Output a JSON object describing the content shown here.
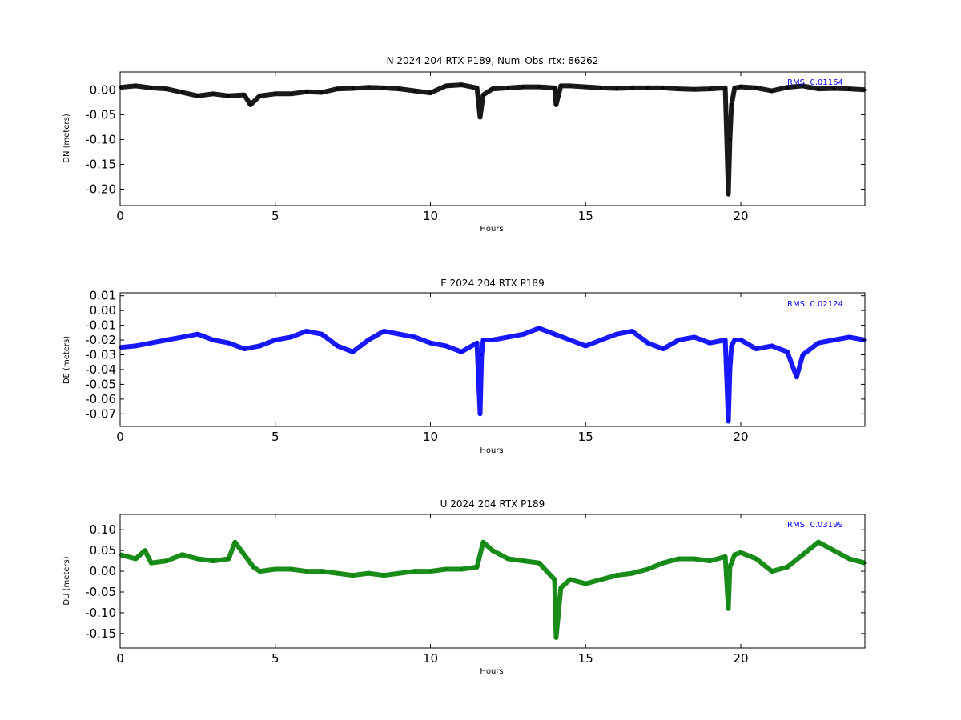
{
  "chart_data": [
    {
      "type": "scatter",
      "title": "N 2024 204 RTX  P189, Num_Obs_rtx: 86262",
      "xlabel": "Hours",
      "ylabel": "DN (meters)",
      "xlim": [
        0,
        24
      ],
      "ylim": [
        -0.233,
        0.036
      ],
      "xticks": [
        "0",
        "5",
        "10",
        "15",
        "20"
      ],
      "yticks": [
        "0.00",
        "-0.05",
        "-0.10",
        "-0.15",
        "-0.20"
      ],
      "rms_label": "RMS:  0.01164",
      "color": "#000000",
      "grid": false,
      "series": [
        {
          "x": [
            0,
            0.5,
            1,
            1.5,
            2,
            2.5,
            3,
            3.5,
            4,
            4.2,
            4.5,
            5,
            5.5,
            6,
            6.5,
            7,
            7.5,
            8,
            8.5,
            9,
            9.5,
            10,
            10.5,
            11,
            11.5,
            11.6,
            11.7,
            12,
            12.5,
            13,
            13.5,
            14,
            14.05,
            14.2,
            14.5,
            15,
            15.5,
            16,
            16.5,
            17,
            17.5,
            18,
            18.5,
            19,
            19.5,
            19.6,
            19.65,
            19.7,
            19.8,
            20,
            20.5,
            21,
            21.5,
            22,
            22.5,
            23,
            23.5,
            24
          ],
          "y": [
            0.005,
            0.008,
            0.004,
            0.002,
            -0.005,
            -0.012,
            -0.008,
            -0.012,
            -0.01,
            -0.03,
            -0.012,
            -0.008,
            -0.008,
            -0.004,
            -0.005,
            0.002,
            0.003,
            0.005,
            0.004,
            0.002,
            -0.002,
            -0.006,
            0.008,
            0.01,
            0.004,
            -0.055,
            -0.01,
            0.002,
            0.004,
            0.006,
            0.006,
            0.004,
            -0.03,
            0.008,
            0.008,
            0.006,
            0.004,
            0.003,
            0.004,
            0.004,
            0.004,
            0.002,
            0.001,
            0.002,
            0.004,
            -0.21,
            -0.1,
            -0.03,
            0.004,
            0.006,
            0.004,
            -0.002,
            0.005,
            0.008,
            0.002,
            0.003,
            0.002,
            0.0
          ]
        }
      ]
    },
    {
      "type": "scatter",
      "title": "E 2024 204 RTX  P189",
      "xlabel": "Hours",
      "ylabel": "DE (meters)",
      "xlim": [
        0,
        24
      ],
      "ylim": [
        -0.0785,
        0.012
      ],
      "xticks": [
        "0",
        "5",
        "10",
        "15",
        "20"
      ],
      "yticks": [
        "0.01",
        "0.00",
        "-0.01",
        "-0.02",
        "-0.03",
        "-0.04",
        "-0.05",
        "-0.06",
        "-0.07"
      ],
      "rms_label": "RMS:  0.02124",
      "color": "#0000ff",
      "grid": false,
      "series": [
        {
          "x": [
            0,
            0.5,
            1,
            1.5,
            2,
            2.5,
            3,
            3.5,
            4,
            4.5,
            5,
            5.5,
            6,
            6.5,
            7,
            7.5,
            8,
            8.5,
            9,
            9.5,
            10,
            10.5,
            11,
            11.5,
            11.6,
            11.65,
            11.7,
            12,
            12.5,
            13,
            13.5,
            14,
            14.5,
            15,
            15.5,
            16,
            16.5,
            17,
            17.5,
            18,
            18.5,
            19,
            19.5,
            19.6,
            19.65,
            19.7,
            19.8,
            20,
            20.5,
            21,
            21.5,
            21.8,
            22,
            22.5,
            23,
            23.5,
            24
          ],
          "y": [
            -0.025,
            -0.024,
            -0.022,
            -0.02,
            -0.018,
            -0.016,
            -0.02,
            -0.022,
            -0.026,
            -0.024,
            -0.02,
            -0.018,
            -0.014,
            -0.016,
            -0.024,
            -0.028,
            -0.02,
            -0.014,
            -0.016,
            -0.018,
            -0.022,
            -0.024,
            -0.028,
            -0.022,
            -0.07,
            -0.03,
            -0.02,
            -0.02,
            -0.018,
            -0.016,
            -0.012,
            -0.016,
            -0.02,
            -0.024,
            -0.02,
            -0.016,
            -0.014,
            -0.022,
            -0.026,
            -0.02,
            -0.018,
            -0.022,
            -0.02,
            -0.075,
            -0.04,
            -0.024,
            -0.02,
            -0.02,
            -0.026,
            -0.024,
            -0.028,
            -0.045,
            -0.03,
            -0.022,
            -0.02,
            -0.018,
            -0.02
          ]
        }
      ]
    },
    {
      "type": "scatter",
      "title": "U 2024 204 RTX  P189",
      "xlabel": "Hours",
      "ylabel": "DU (meters)",
      "xlim": [
        0,
        24
      ],
      "ylim": [
        -0.185,
        0.137
      ],
      "xticks": [
        "0",
        "5",
        "10",
        "15",
        "20"
      ],
      "yticks": [
        "0.10",
        "0.05",
        "0.00",
        "-0.05",
        "-0.10",
        "-0.15"
      ],
      "rms_label": "RMS:  0.03199",
      "color": "#008000",
      "grid": false,
      "series": [
        {
          "x": [
            0,
            0.5,
            0.8,
            1,
            1.5,
            2,
            2.5,
            3,
            3.5,
            3.7,
            4,
            4.3,
            4.5,
            5,
            5.5,
            6,
            6.5,
            7,
            7.5,
            8,
            8.5,
            9,
            9.5,
            10,
            10.5,
            11,
            11.5,
            11.7,
            12,
            12.5,
            13,
            13.5,
            14,
            14.05,
            14.2,
            14.5,
            15,
            15.5,
            16,
            16.5,
            17,
            17.5,
            18,
            18.5,
            19,
            19.5,
            19.6,
            19.65,
            19.8,
            20,
            20.5,
            21,
            21.5,
            22,
            22.5,
            23,
            23.5,
            24
          ],
          "y": [
            0.04,
            0.03,
            0.05,
            0.02,
            0.025,
            0.04,
            0.03,
            0.025,
            0.03,
            0.07,
            0.04,
            0.01,
            0.0,
            0.005,
            0.005,
            0.0,
            0.0,
            -0.005,
            -0.01,
            -0.005,
            -0.01,
            -0.005,
            0.0,
            0.0,
            0.005,
            0.005,
            0.01,
            0.07,
            0.05,
            0.03,
            0.025,
            0.02,
            -0.02,
            -0.16,
            -0.04,
            -0.02,
            -0.03,
            -0.02,
            -0.01,
            -0.005,
            0.005,
            0.02,
            0.03,
            0.03,
            0.025,
            0.035,
            -0.09,
            0.01,
            0.04,
            0.045,
            0.03,
            0.0,
            0.01,
            0.04,
            0.07,
            0.05,
            0.03,
            0.02
          ]
        }
      ]
    }
  ]
}
